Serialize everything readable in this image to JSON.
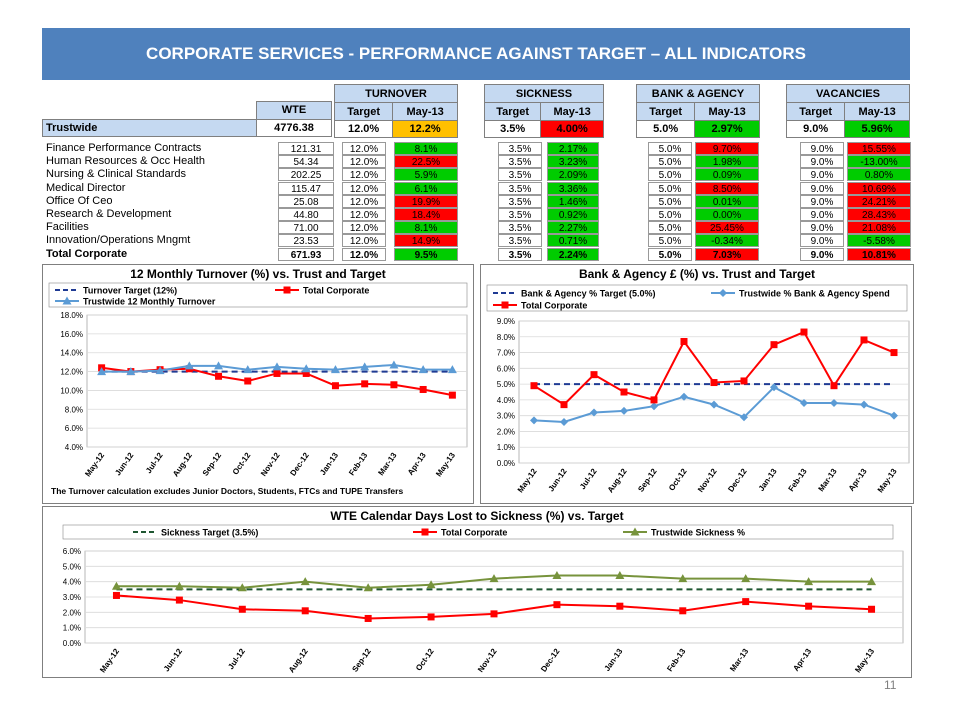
{
  "title": "CORPORATE SERVICES - PERFORMANCE AGAINST TARGET – ALL INDICATORS",
  "page_number": "11",
  "colors": {
    "title_bg": "#4f81bd",
    "green": "#00cc00",
    "red": "#ff0000",
    "amber": "#ffc000",
    "header_bg": "#c5d9f1"
  },
  "table": {
    "groups": {
      "turnover": "TURNOVER",
      "sickness": "SICKNESS",
      "bank": "BANK & AGENCY",
      "vacancies": "VACANCIES"
    },
    "cols": {
      "wte": "WTE",
      "target": "Target",
      "month": "May-13"
    },
    "trustwide": {
      "label": "Trustwide",
      "wte": "4776.38",
      "turnover_target": "12.0%",
      "turnover": "12.2%",
      "sick_target": "3.5%",
      "sick": "4.00%",
      "bank_target": "5.0%",
      "bank": "2.97%",
      "vac_target": "9.0%",
      "vac": "5.96%"
    },
    "rows": [
      {
        "name": "Finance Performance Contracts",
        "wte": "121.31",
        "tt": "12.0%",
        "t": "8.1%",
        "tc": "green",
        "st": "3.5%",
        "s": "2.17%",
        "sc": "green",
        "bt": "5.0%",
        "b": "9.70%",
        "bc": "red",
        "vt": "9.0%",
        "v": "15.55%",
        "vc": "red"
      },
      {
        "name": "Human Resources & Occ Health",
        "wte": "54.34",
        "tt": "12.0%",
        "t": "22.5%",
        "tc": "red",
        "st": "3.5%",
        "s": "3.23%",
        "sc": "green",
        "bt": "5.0%",
        "b": "1.98%",
        "bc": "green",
        "vt": "9.0%",
        "v": "-13.00%",
        "vc": "green"
      },
      {
        "name": "Nursing & Clinical Standards",
        "wte": "202.25",
        "tt": "12.0%",
        "t": "5.9%",
        "tc": "green",
        "st": "3.5%",
        "s": "2.09%",
        "sc": "green",
        "bt": "5.0%",
        "b": "0.09%",
        "bc": "green",
        "vt": "9.0%",
        "v": "0.80%",
        "vc": "green"
      },
      {
        "name": "Medical Director",
        "wte": "115.47",
        "tt": "12.0%",
        "t": "6.1%",
        "tc": "green",
        "st": "3.5%",
        "s": "3.36%",
        "sc": "green",
        "bt": "5.0%",
        "b": "8.50%",
        "bc": "red",
        "vt": "9.0%",
        "v": "10.69%",
        "vc": "red"
      },
      {
        "name": "Office Of Ceo",
        "wte": "25.08",
        "tt": "12.0%",
        "t": "19.9%",
        "tc": "red",
        "st": "3.5%",
        "s": "1.46%",
        "sc": "green",
        "bt": "5.0%",
        "b": "0.01%",
        "bc": "green",
        "vt": "9.0%",
        "v": "24.21%",
        "vc": "red"
      },
      {
        "name": "Research & Development",
        "wte": "44.80",
        "tt": "12.0%",
        "t": "18.4%",
        "tc": "red",
        "st": "3.5%",
        "s": "0.92%",
        "sc": "green",
        "bt": "5.0%",
        "b": "0.00%",
        "bc": "green",
        "vt": "9.0%",
        "v": "28.43%",
        "vc": "red"
      },
      {
        "name": "Facilities",
        "wte": "71.00",
        "tt": "12.0%",
        "t": "8.1%",
        "tc": "green",
        "st": "3.5%",
        "s": "2.27%",
        "sc": "green",
        "bt": "5.0%",
        "b": "25.45%",
        "bc": "red",
        "vt": "9.0%",
        "v": "21.08%",
        "vc": "red"
      },
      {
        "name": "Innovation/Operations Mngmt",
        "wte": "23.53",
        "tt": "12.0%",
        "t": "14.9%",
        "tc": "red",
        "st": "3.5%",
        "s": "0.71%",
        "sc": "green",
        "bt": "5.0%",
        "b": "-0.34%",
        "bc": "green",
        "vt": "9.0%",
        "v": "-5.58%",
        "vc": "green"
      }
    ],
    "total": {
      "name": "Total Corporate",
      "wte": "671.93",
      "tt": "12.0%",
      "t": "9.5%",
      "tc": "green",
      "st": "3.5%",
      "s": "2.24%",
      "sc": "green",
      "bt": "5.0%",
      "b": "7.03%",
      "bc": "red",
      "vt": "9.0%",
      "v": "10.81%",
      "vc": "red"
    }
  },
  "chart_data": [
    {
      "type": "line",
      "title": "12 Monthly Turnover (%) vs. Trust and Target",
      "categories": [
        "May-12",
        "Jun-12",
        "Jul-12",
        "Aug-12",
        "Sep-12",
        "Oct-12",
        "Nov-12",
        "Dec-12",
        "Jan-13",
        "Feb-13",
        "Mar-13",
        "Apr-13",
        "May-13"
      ],
      "ylim": [
        4.0,
        18.0
      ],
      "yticks": [
        "4.0%",
        "6.0%",
        "8.0%",
        "10.0%",
        "12.0%",
        "14.0%",
        "16.0%",
        "18.0%"
      ],
      "legend": [
        "Turnover Target (12%)",
        "Total Corporate",
        "Trustwide 12 Monthly Turnover"
      ],
      "footnote": "The Turnover calculation excludes Junior Doctors, Students, FTCs and TUPE Transfers",
      "series": [
        {
          "name": "Turnover Target (12%)",
          "color": "#1f3a93",
          "style": "dashed",
          "values": [
            12,
            12,
            12,
            12,
            12,
            12,
            12,
            12,
            12,
            12,
            12,
            12,
            12
          ]
        },
        {
          "name": "Total Corporate",
          "color": "#ff0000",
          "marker": "square",
          "values": [
            12.4,
            12.0,
            12.2,
            12.3,
            11.5,
            11.0,
            11.8,
            11.8,
            10.5,
            10.7,
            10.6,
            10.1,
            9.5
          ]
        },
        {
          "name": "Trustwide 12 Monthly Turnover",
          "color": "#5b9bd5",
          "marker": "triangle",
          "values": [
            12.0,
            12.0,
            12.1,
            12.6,
            12.6,
            12.2,
            12.5,
            12.3,
            12.2,
            12.5,
            12.7,
            12.2,
            12.2
          ]
        }
      ]
    },
    {
      "type": "line",
      "title": "Bank & Agency £ (%) vs. Trust and Target",
      "categories": [
        "May-12",
        "Jun-12",
        "Jul-12",
        "Aug-12",
        "Sep-12",
        "Oct-12",
        "Nov-12",
        "Dec-12",
        "Jan-13",
        "Feb-13",
        "Mar-13",
        "Apr-13",
        "May-13"
      ],
      "ylim": [
        0.0,
        9.0
      ],
      "yticks": [
        "0.0%",
        "1.0%",
        "2.0%",
        "3.0%",
        "4.0%",
        "5.0%",
        "6.0%",
        "7.0%",
        "8.0%",
        "9.0%"
      ],
      "legend": [
        "Bank & Agency % Target (5.0%)",
        "Trustwide % Bank & Agency Spend",
        "Total Corporate"
      ],
      "series": [
        {
          "name": "Bank & Agency % Target (5.0%)",
          "color": "#1f3a93",
          "style": "dashed",
          "values": [
            5,
            5,
            5,
            5,
            5,
            5,
            5,
            5,
            5,
            5,
            5,
            5,
            5
          ]
        },
        {
          "name": "Trustwide % Bank & Agency Spend",
          "color": "#5b9bd5",
          "marker": "diamond",
          "values": [
            2.7,
            2.6,
            3.2,
            3.3,
            3.6,
            4.2,
            3.7,
            2.9,
            4.8,
            3.8,
            3.8,
            3.7,
            3.0
          ]
        },
        {
          "name": "Total Corporate",
          "color": "#ff0000",
          "marker": "square",
          "values": [
            4.9,
            3.7,
            5.6,
            4.5,
            4.0,
            7.7,
            5.1,
            5.2,
            7.5,
            8.3,
            4.9,
            7.8,
            7.0
          ]
        }
      ]
    },
    {
      "type": "line",
      "title": "WTE Calendar Days Lost to Sickness (%) vs. Target",
      "categories": [
        "May-12",
        "Jun-12",
        "Jul-12",
        "Aug-12",
        "Sep-12",
        "Oct-12",
        "Nov-12",
        "Dec-12",
        "Jan-13",
        "Feb-13",
        "Mar-13",
        "Apr-13",
        "May-13"
      ],
      "ylim": [
        0.0,
        6.0
      ],
      "yticks": [
        "0.0%",
        "1.0%",
        "2.0%",
        "3.0%",
        "4.0%",
        "5.0%",
        "6.0%"
      ],
      "legend": [
        "Sickness Target (3.5%)",
        "Total Corporate",
        "Trustwide Sickness %"
      ],
      "series": [
        {
          "name": "Sickness Target (3.5%)",
          "color": "#1e5631",
          "style": "dashed",
          "values": [
            3.5,
            3.5,
            3.5,
            3.5,
            3.5,
            3.5,
            3.5,
            3.5,
            3.5,
            3.5,
            3.5,
            3.5,
            3.5
          ]
        },
        {
          "name": "Total Corporate",
          "color": "#ff0000",
          "marker": "square",
          "values": [
            3.1,
            2.8,
            2.2,
            2.1,
            1.6,
            1.7,
            1.9,
            2.5,
            2.4,
            2.1,
            2.7,
            2.4,
            2.2
          ]
        },
        {
          "name": "Trustwide Sickness %",
          "color": "#77933c",
          "marker": "triangle",
          "values": [
            3.7,
            3.7,
            3.6,
            4.0,
            3.6,
            3.8,
            4.2,
            4.4,
            4.4,
            4.2,
            4.2,
            4.0,
            4.0
          ]
        }
      ]
    }
  ]
}
